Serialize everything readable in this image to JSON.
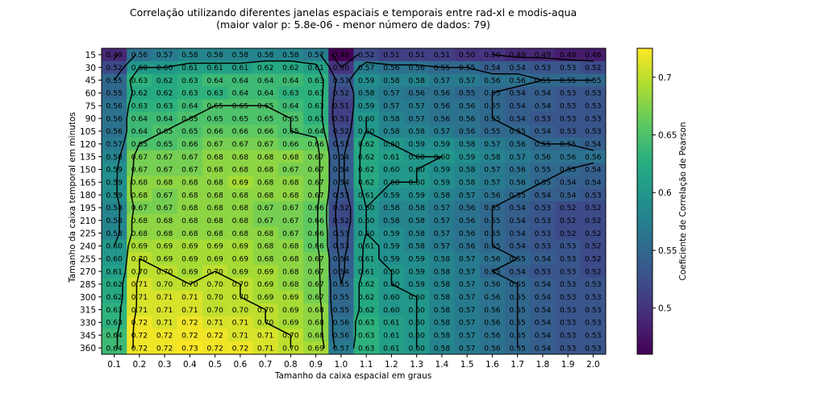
{
  "chart_data": {
    "type": "heatmap",
    "title": "Correlação utilizando diferentes janelas espaciais e temporais entre rad-xl e modis-aqua",
    "subtitle": "(maior valor p: 5.8e-06 - menor número de dados: 79)",
    "xlabel": "Tamanho da caixa espacial em graus",
    "ylabel": "Tamanho da caixa temporal em minutos",
    "colorbar_label": "Coeficiente de Correlação de Pearson",
    "colormap": "viridis",
    "vmin": 0.46,
    "vmax": 0.725,
    "colorbar_ticks": [
      0.5,
      0.55,
      0.6,
      0.65,
      0.7
    ],
    "colorbar_tick_labels": [
      "0.5",
      "0.55",
      "0.6",
      "0.65",
      "0.7"
    ],
    "x": [
      "0.1",
      "0.2",
      "0.3",
      "0.4",
      "0.5",
      "0.6",
      "0.7",
      "0.8",
      "0.9",
      "1.0",
      "1.1",
      "1.2",
      "1.3",
      "1.4",
      "1.5",
      "1.6",
      "1.7",
      "1.8",
      "1.9",
      "2.0"
    ],
    "y": [
      "15",
      "30",
      "45",
      "60",
      "75",
      "90",
      "105",
      "120",
      "135",
      "150",
      "165",
      "180",
      "195",
      "210",
      "225",
      "240",
      "255",
      "270",
      "285",
      "300",
      "315",
      "330",
      "345",
      "360"
    ],
    "values": [
      [
        "0.49",
        "0.56",
        "0.57",
        "0.58",
        "0.58",
        "0.58",
        "0.58",
        "0.58",
        "0.57",
        "0.46",
        "0.52",
        "0.51",
        "0.51",
        "0.51",
        "0.50",
        "0.50",
        "0.49",
        "0.49",
        "0.48",
        "0.48"
      ],
      [
        "0.52",
        "0.60",
        "0.60",
        "0.61",
        "0.61",
        "0.61",
        "0.62",
        "0.62",
        "0.61",
        "0.50",
        "0.57",
        "0.56",
        "0.56",
        "0.55",
        "0.55",
        "0.54",
        "0.54",
        "0.53",
        "0.53",
        "0.52"
      ],
      [
        "0.55",
        "0.63",
        "0.62",
        "0.63",
        "0.64",
        "0.64",
        "0.64",
        "0.64",
        "0.63",
        "0.53",
        "0.59",
        "0.58",
        "0.58",
        "0.57",
        "0.57",
        "0.56",
        "0.56",
        "0.55",
        "0.55",
        "0.55"
      ],
      [
        "0.55",
        "0.62",
        "0.62",
        "0.63",
        "0.63",
        "0.64",
        "0.64",
        "0.63",
        "0.63",
        "0.52",
        "0.58",
        "0.57",
        "0.56",
        "0.56",
        "0.55",
        "0.55",
        "0.54",
        "0.54",
        "0.53",
        "0.53"
      ],
      [
        "0.56",
        "0.63",
        "0.63",
        "0.64",
        "0.65",
        "0.65",
        "0.65",
        "0.64",
        "0.63",
        "0.51",
        "0.59",
        "0.57",
        "0.57",
        "0.56",
        "0.56",
        "0.55",
        "0.54",
        "0.54",
        "0.53",
        "0.53"
      ],
      [
        "0.56",
        "0.64",
        "0.64",
        "0.65",
        "0.65",
        "0.65",
        "0.65",
        "0.65",
        "0.63",
        "0.51",
        "0.60",
        "0.58",
        "0.57",
        "0.56",
        "0.56",
        "0.55",
        "0.54",
        "0.53",
        "0.53",
        "0.53"
      ],
      [
        "0.56",
        "0.64",
        "0.65",
        "0.65",
        "0.66",
        "0.66",
        "0.66",
        "0.65",
        "0.64",
        "0.52",
        "0.60",
        "0.58",
        "0.58",
        "0.57",
        "0.56",
        "0.55",
        "0.55",
        "0.54",
        "0.53",
        "0.53"
      ],
      [
        "0.57",
        "0.65",
        "0.65",
        "0.66",
        "0.67",
        "0.67",
        "0.67",
        "0.66",
        "0.66",
        "0.53",
        "0.62",
        "0.60",
        "0.59",
        "0.59",
        "0.58",
        "0.57",
        "0.56",
        "0.55",
        "0.55",
        "0.54"
      ],
      [
        "0.58",
        "0.67",
        "0.67",
        "0.67",
        "0.68",
        "0.68",
        "0.68",
        "0.68",
        "0.67",
        "0.54",
        "0.62",
        "0.61",
        "0.60",
        "0.60",
        "0.59",
        "0.58",
        "0.57",
        "0.56",
        "0.56",
        "0.56"
      ],
      [
        "0.59",
        "0.67",
        "0.67",
        "0.67",
        "0.68",
        "0.68",
        "0.68",
        "0.67",
        "0.67",
        "0.54",
        "0.62",
        "0.60",
        "0.60",
        "0.59",
        "0.58",
        "0.57",
        "0.56",
        "0.55",
        "0.55",
        "0.54"
      ],
      [
        "0.59",
        "0.68",
        "0.68",
        "0.68",
        "0.68",
        "0.69",
        "0.68",
        "0.68",
        "0.67",
        "0.54",
        "0.62",
        "0.60",
        "0.60",
        "0.59",
        "0.58",
        "0.57",
        "0.56",
        "0.55",
        "0.54",
        "0.54"
      ],
      [
        "0.59",
        "0.68",
        "0.67",
        "0.68",
        "0.68",
        "0.68",
        "0.68",
        "0.68",
        "0.67",
        "0.53",
        "0.61",
        "0.59",
        "0.59",
        "0.58",
        "0.57",
        "0.56",
        "0.55",
        "0.54",
        "0.54",
        "0.53"
      ],
      [
        "0.58",
        "0.67",
        "0.67",
        "0.68",
        "0.68",
        "0.68",
        "0.67",
        "0.67",
        "0.66",
        "0.52",
        "0.60",
        "0.58",
        "0.58",
        "0.57",
        "0.56",
        "0.55",
        "0.54",
        "0.53",
        "0.52",
        "0.52"
      ],
      [
        "0.58",
        "0.68",
        "0.68",
        "0.68",
        "0.68",
        "0.68",
        "0.67",
        "0.67",
        "0.66",
        "0.52",
        "0.60",
        "0.58",
        "0.58",
        "0.57",
        "0.56",
        "0.55",
        "0.54",
        "0.53",
        "0.52",
        "0.52"
      ],
      [
        "0.58",
        "0.68",
        "0.68",
        "0.68",
        "0.68",
        "0.68",
        "0.68",
        "0.67",
        "0.66",
        "0.53",
        "0.60",
        "0.59",
        "0.58",
        "0.57",
        "0.56",
        "0.55",
        "0.54",
        "0.53",
        "0.52",
        "0.52"
      ],
      [
        "0.60",
        "0.69",
        "0.69",
        "0.69",
        "0.69",
        "0.69",
        "0.68",
        "0.68",
        "0.66",
        "0.53",
        "0.61",
        "0.59",
        "0.58",
        "0.57",
        "0.56",
        "0.55",
        "0.54",
        "0.53",
        "0.53",
        "0.52"
      ],
      [
        "0.60",
        "0.70",
        "0.69",
        "0.69",
        "0.69",
        "0.69",
        "0.68",
        "0.68",
        "0.67",
        "0.54",
        "0.61",
        "0.59",
        "0.59",
        "0.58",
        "0.57",
        "0.56",
        "0.55",
        "0.54",
        "0.53",
        "0.52"
      ],
      [
        "0.61",
        "0.70",
        "0.70",
        "0.69",
        "0.70",
        "0.69",
        "0.69",
        "0.68",
        "0.67",
        "0.54",
        "0.61",
        "0.60",
        "0.59",
        "0.58",
        "0.57",
        "0.55",
        "0.54",
        "0.53",
        "0.53",
        "0.52"
      ],
      [
        "0.62",
        "0.71",
        "0.70",
        "0.70",
        "0.70",
        "0.70",
        "0.69",
        "0.68",
        "0.67",
        "0.55",
        "0.62",
        "0.60",
        "0.59",
        "0.58",
        "0.57",
        "0.56",
        "0.55",
        "0.54",
        "0.53",
        "0.53"
      ],
      [
        "0.62",
        "0.71",
        "0.71",
        "0.71",
        "0.70",
        "0.70",
        "0.69",
        "0.69",
        "0.67",
        "0.55",
        "0.62",
        "0.60",
        "0.60",
        "0.58",
        "0.57",
        "0.56",
        "0.55",
        "0.54",
        "0.53",
        "0.53"
      ],
      [
        "0.63",
        "0.71",
        "0.71",
        "0.71",
        "0.70",
        "0.70",
        "0.70",
        "0.69",
        "0.68",
        "0.55",
        "0.62",
        "0.60",
        "0.60",
        "0.58",
        "0.57",
        "0.56",
        "0.55",
        "0.54",
        "0.53",
        "0.53"
      ],
      [
        "0.63",
        "0.72",
        "0.71",
        "0.72",
        "0.71",
        "0.71",
        "0.70",
        "0.69",
        "0.68",
        "0.56",
        "0.63",
        "0.61",
        "0.60",
        "0.58",
        "0.57",
        "0.56",
        "0.55",
        "0.54",
        "0.53",
        "0.53"
      ],
      [
        "0.64",
        "0.72",
        "0.72",
        "0.72",
        "0.72",
        "0.71",
        "0.71",
        "0.70",
        "0.68",
        "0.56",
        "0.63",
        "0.61",
        "0.60",
        "0.58",
        "0.57",
        "0.56",
        "0.55",
        "0.54",
        "0.53",
        "0.53"
      ],
      [
        "0.64",
        "0.72",
        "0.72",
        "0.73",
        "0.72",
        "0.72",
        "0.71",
        "0.70",
        "0.69",
        "0.57",
        "0.63",
        "0.61",
        "0.60",
        "0.58",
        "0.57",
        "0.56",
        "0.55",
        "0.54",
        "0.53",
        "0.53"
      ]
    ]
  }
}
